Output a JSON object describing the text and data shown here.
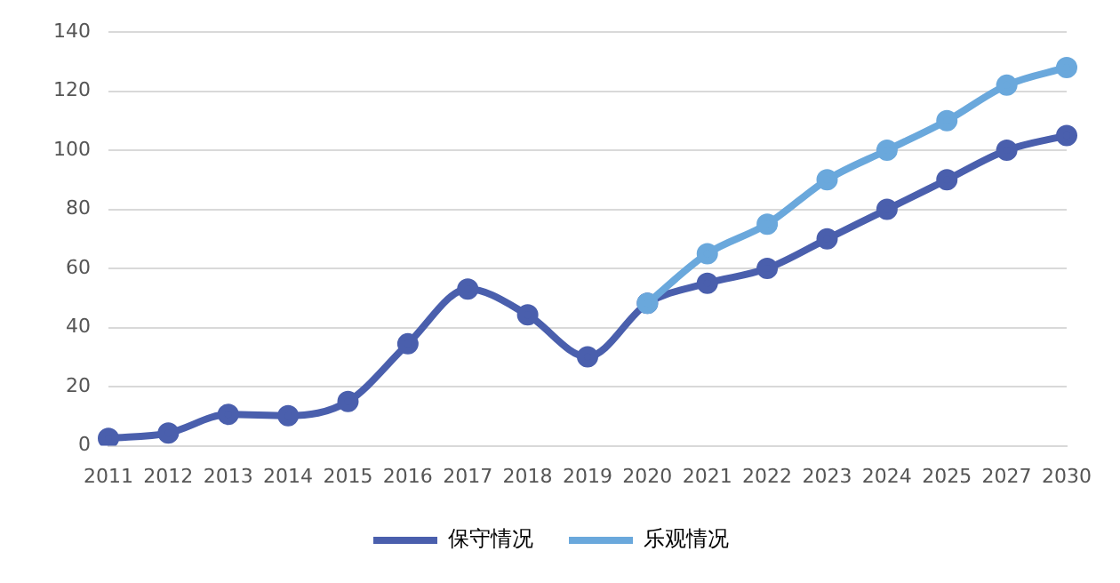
{
  "chart_data": {
    "type": "line",
    "categories": [
      "2011",
      "2012",
      "2013",
      "2014",
      "2015",
      "2016",
      "2017",
      "2018",
      "2019",
      "2020",
      "2021",
      "2022",
      "2023",
      "2024",
      "2025",
      "2027",
      "2030"
    ],
    "series": [
      {
        "name": "保守情况",
        "color": "#4a5fad",
        "values": [
          2.5,
          4.3,
          10.6,
          10.2,
          15,
          34.5,
          53,
          44.3,
          30.1,
          48.2,
          55,
          60,
          70,
          80,
          90,
          100,
          105
        ]
      },
      {
        "name": "乐观情况",
        "color": "#6aa8dc",
        "values": [
          null,
          null,
          null,
          null,
          null,
          null,
          null,
          null,
          null,
          48.2,
          65,
          75,
          90,
          100,
          110,
          122,
          128
        ]
      }
    ],
    "ylim": [
      0,
      140
    ],
    "yticks": [
      0,
      20,
      40,
      60,
      80,
      100,
      120,
      140
    ],
    "grid": "y",
    "legend": "bottom",
    "marker": "circle",
    "line_style": "solid"
  }
}
